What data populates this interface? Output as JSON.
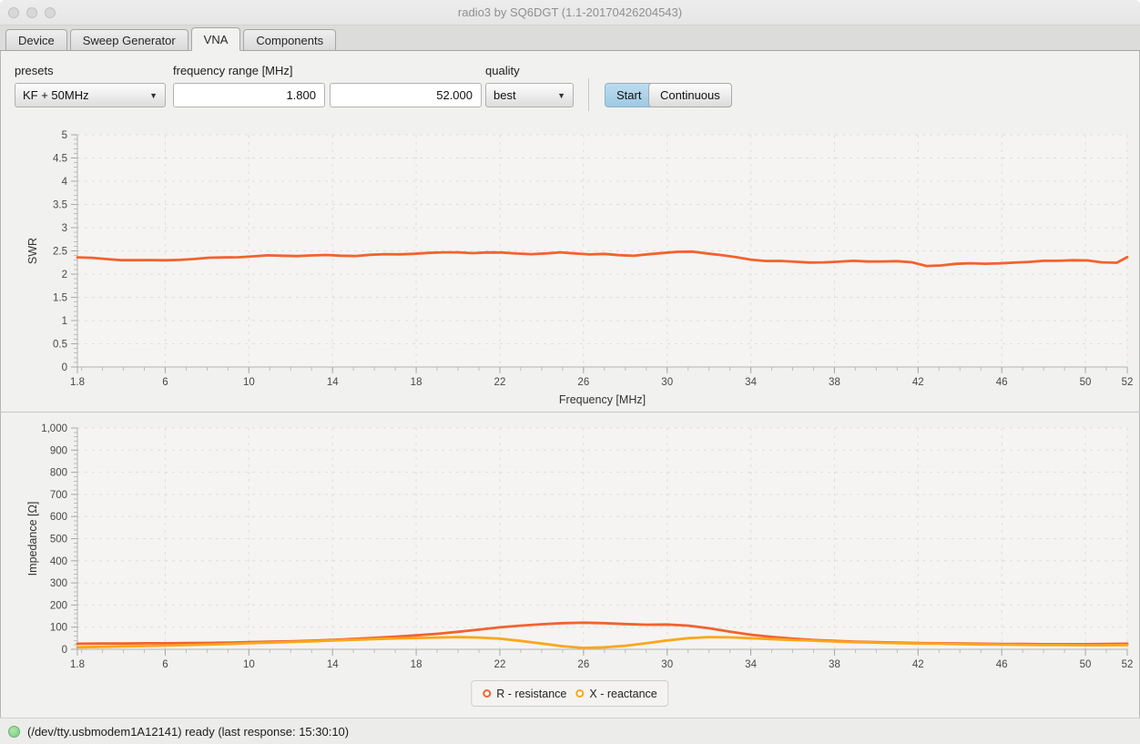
{
  "window": {
    "title": "radio3 by SQ6DGT (1.1-20170426204543)"
  },
  "tabs": [
    {
      "label": "Device",
      "active": false
    },
    {
      "label": "Sweep Generator",
      "active": false
    },
    {
      "label": "VNA",
      "active": true
    },
    {
      "label": "Components",
      "active": false
    }
  ],
  "toolbar": {
    "presets_label": "presets",
    "presets_value": "KF + 50MHz",
    "freq_range_label": "frequency range [MHz]",
    "freq_start": "1.800",
    "freq_end": "52.000",
    "quality_label": "quality",
    "quality_value": "best",
    "start_label": "Start",
    "continuous_label": "Continuous",
    "caret": "▼"
  },
  "colors": {
    "swr_line": "#f3622d",
    "resistance_line": "#f3622d",
    "reactance_line": "#fba71b",
    "start_button": "#aacfe8",
    "status_green": "#8bdc8f"
  },
  "status_bar": {
    "text": "(/dev/tty.usbmodem1A12141) ready (last response: 15:30:10)"
  },
  "chart_data": [
    {
      "type": "line",
      "title": "",
      "xlabel": "Frequency [MHz]",
      "ylabel": "SWR",
      "xlim": [
        1.8,
        52
      ],
      "ylim": [
        0,
        5
      ],
      "grid": true,
      "legend_position": "none",
      "xticks": [
        1.8,
        6,
        10,
        14,
        18,
        22,
        26,
        30,
        34,
        38,
        42,
        46,
        50,
        52
      ],
      "xtick_labels": [
        "1.8",
        "6",
        "10",
        "14",
        "18",
        "22",
        "26",
        "30",
        "34",
        "38",
        "42",
        "46",
        "50",
        "52"
      ],
      "xminor_start": 2,
      "xminor_step": 1,
      "yticks": [
        0,
        0.5,
        1,
        1.5,
        2,
        2.5,
        3,
        3.5,
        4,
        4.5,
        5
      ],
      "ytick_labels": [
        "0",
        "0.5",
        "1",
        "1.5",
        "2",
        "2.5",
        "3",
        "3.5",
        "4",
        "4.5",
        "5"
      ],
      "yminor_step": 0.1,
      "series": [
        {
          "name": "SWR",
          "color": "#f3622d",
          "noisy": true,
          "x": [
            1.8,
            2.5,
            3.2,
            3.9,
            4.6,
            5.3,
            6,
            6.7,
            7.4,
            8.1,
            8.8,
            9.5,
            10.2,
            10.9,
            11.6,
            12.3,
            13,
            13.7,
            14.4,
            15.1,
            15.8,
            16.5,
            17.2,
            17.9,
            18.6,
            19.3,
            20,
            20.7,
            21.4,
            22.1,
            22.8,
            23.5,
            24.2,
            24.9,
            25.6,
            26.3,
            27,
            27.7,
            28.4,
            29.1,
            29.8,
            30.5,
            31.2,
            31.9,
            32.6,
            33.3,
            34,
            34.7,
            35.4,
            36.1,
            36.8,
            37.5,
            38.2,
            38.9,
            39.6,
            40.3,
            41,
            41.7,
            42.4,
            43.1,
            43.8,
            44.5,
            45.2,
            45.9,
            46.6,
            47.3,
            48,
            48.7,
            49.4,
            50.1,
            50.8,
            51.5,
            52
          ],
          "y": [
            2.36,
            2.35,
            2.34,
            2.33,
            2.32,
            2.31,
            2.31,
            2.32,
            2.32,
            2.33,
            2.34,
            2.35,
            2.36,
            2.38,
            2.39,
            2.4,
            2.41,
            2.42,
            2.42,
            2.42,
            2.43,
            2.43,
            2.43,
            2.44,
            2.44,
            2.44,
            2.45,
            2.44,
            2.45,
            2.45,
            2.45,
            2.45,
            2.46,
            2.48,
            2.47,
            2.45,
            2.44,
            2.4,
            2.39,
            2.42,
            2.43,
            2.45,
            2.47,
            2.44,
            2.4,
            2.36,
            2.33,
            2.31,
            2.3,
            2.28,
            2.27,
            2.27,
            2.26,
            2.27,
            2.26,
            2.26,
            2.25,
            2.23,
            2.17,
            2.19,
            2.22,
            2.24,
            2.25,
            2.26,
            2.26,
            2.27,
            2.3,
            2.29,
            2.28,
            2.27,
            2.24,
            2.23,
            2.34
          ]
        }
      ]
    },
    {
      "type": "line",
      "title": "",
      "xlabel": "",
      "ylabel": "Impedance [Ω]",
      "xlim": [
        1.8,
        52
      ],
      "ylim": [
        0,
        1000
      ],
      "grid": true,
      "legend_position": "bottom",
      "xticks": [
        1.8,
        6,
        10,
        14,
        18,
        22,
        26,
        30,
        34,
        38,
        42,
        46,
        50,
        52
      ],
      "xtick_labels": [
        "1.8",
        "6",
        "10",
        "14",
        "18",
        "22",
        "26",
        "30",
        "34",
        "38",
        "42",
        "46",
        "50",
        "52"
      ],
      "xminor_start": 2,
      "xminor_step": 1,
      "yticks": [
        0,
        100,
        200,
        300,
        400,
        500,
        600,
        700,
        800,
        900,
        1000
      ],
      "ytick_labels": [
        "0",
        "100",
        "200",
        "300",
        "400",
        "500",
        "600",
        "700",
        "800",
        "900",
        "1,000"
      ],
      "yminor_step": 20,
      "series": [
        {
          "name": "R - resistance",
          "color": "#f3622d",
          "noisy": false,
          "x": [
            1.8,
            3,
            4,
            5,
            6,
            7,
            8,
            9,
            10,
            11,
            12,
            13,
            14,
            15,
            16,
            17,
            18,
            19,
            20,
            21,
            22,
            23,
            24,
            25,
            26,
            27,
            28,
            29,
            30,
            31,
            32,
            33,
            34,
            35,
            36,
            37,
            38,
            39,
            40,
            41,
            42,
            43,
            44,
            45,
            46,
            47,
            48,
            49,
            50,
            51,
            52
          ],
          "y": [
            25,
            26,
            26,
            27,
            27,
            28,
            29,
            30,
            32,
            34,
            36,
            39,
            43,
            47,
            52,
            57,
            63,
            70,
            79,
            89,
            99,
            107,
            113,
            118,
            120,
            118,
            114,
            111,
            112,
            107,
            95,
            80,
            66,
            56,
            48,
            42,
            38,
            34,
            32,
            30,
            28,
            27,
            26,
            25,
            24,
            24,
            23,
            23,
            23,
            24,
            25
          ]
        },
        {
          "name": "X - reactance",
          "color": "#fba71b",
          "noisy": false,
          "x": [
            1.8,
            3,
            4,
            5,
            6,
            7,
            8,
            9,
            10,
            11,
            12,
            13,
            14,
            15,
            16,
            17,
            18,
            19,
            20,
            21,
            22,
            23,
            24,
            25,
            26,
            27,
            28,
            29,
            30,
            31,
            32,
            33,
            34,
            35,
            36,
            37,
            38,
            39,
            40,
            41,
            42,
            43,
            44,
            45,
            46,
            47,
            48,
            49,
            50,
            51,
            52
          ],
          "y": [
            9,
            11,
            13,
            15,
            17,
            19,
            21,
            24,
            27,
            30,
            33,
            36,
            40,
            43,
            46,
            49,
            51,
            53,
            55,
            53,
            48,
            38,
            26,
            14,
            6,
            9,
            16,
            27,
            40,
            50,
            55,
            54,
            50,
            46,
            42,
            39,
            35,
            32,
            30,
            28,
            26,
            25,
            23,
            22,
            21,
            20,
            19,
            19,
            18,
            18,
            19
          ]
        }
      ]
    }
  ]
}
